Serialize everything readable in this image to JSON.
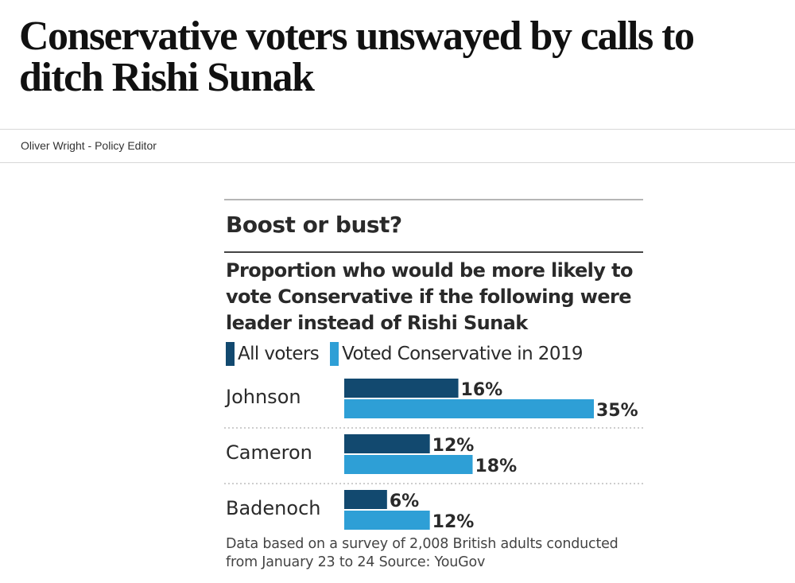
{
  "article": {
    "headline": "Conservative voters unswayed by calls to ditch Rishi Sunak",
    "byline": "Oliver Wright - Policy Editor"
  },
  "colors": {
    "all_voters": "#12496f",
    "voted_conservative_2019": "#2e9fd6"
  },
  "chart_data": {
    "type": "bar",
    "orientation": "horizontal",
    "title": "Boost or bust?",
    "subtitle": "Proportion who would be more likely to vote Conservative if the following were leader instead of Rishi Sunak",
    "categories": [
      "Johnson",
      "Cameron",
      "Badenoch"
    ],
    "series": [
      {
        "name": "All voters",
        "values": [
          16,
          12,
          6
        ],
        "labels": [
          "16%",
          "12%",
          "6%"
        ]
      },
      {
        "name": "Voted Conservative in 2019",
        "values": [
          35,
          18,
          12
        ],
        "labels": [
          "35%",
          "18%",
          "12%"
        ]
      }
    ],
    "unit": "%",
    "xlim": [
      0,
      35
    ],
    "legend_position": "top-left",
    "grid": false,
    "source": "Data based on a survey of 2,008 British adults conducted from January 23 to 24 Source: YouGov"
  }
}
